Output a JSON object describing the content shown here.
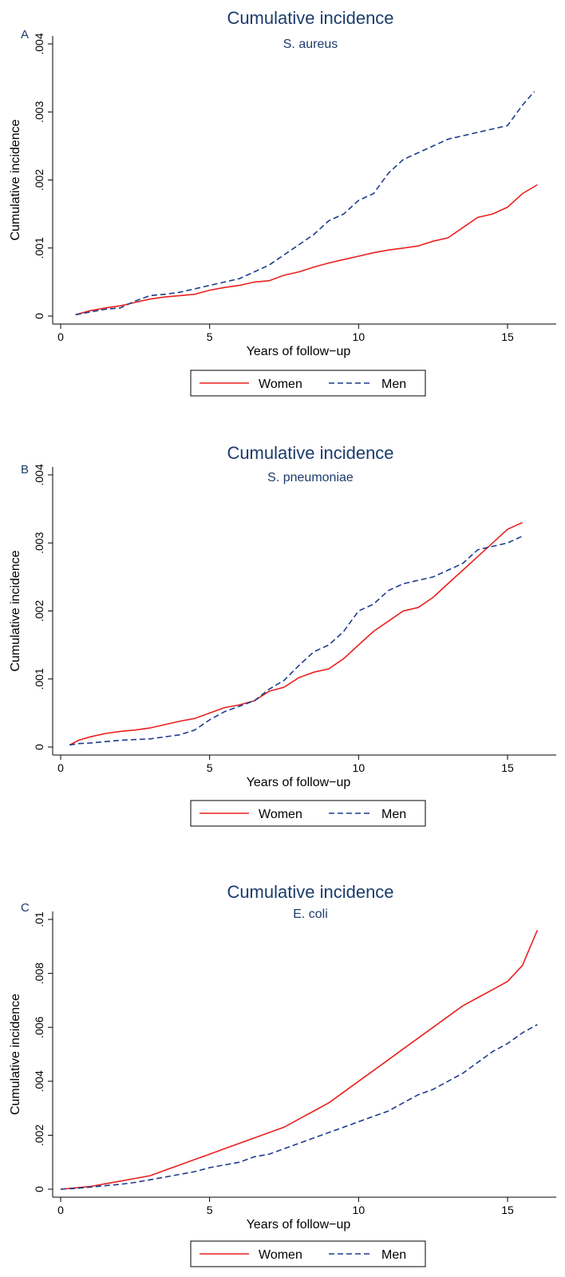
{
  "chart_data": [
    {
      "panel_label": "A",
      "type": "line",
      "title": "Cumulative incidence",
      "subtitle": "S. aureus",
      "xlabel": "Years of follow−up",
      "ylabel": "Cumulative incidence",
      "xlim": [
        0,
        17
      ],
      "ylim": [
        0,
        0.004
      ],
      "xticks": [
        0,
        5,
        10,
        15
      ],
      "xtick_labels": [
        "0",
        "5",
        "10",
        "15"
      ],
      "yticks": [
        0,
        0.001,
        0.002,
        0.003,
        0.004
      ],
      "ytick_labels": [
        "0",
        ".001",
        ".002",
        ".003",
        ".004"
      ],
      "legend": [
        "Women",
        "Men"
      ],
      "series": [
        {
          "name": "Women",
          "color": "#e8211f",
          "dash": "solid",
          "x": [
            0.5,
            1,
            1.5,
            2,
            2.5,
            3,
            3.5,
            4,
            4.5,
            5,
            5.5,
            6,
            6.5,
            7,
            7.5,
            8,
            8.5,
            9,
            9.5,
            10,
            10.5,
            11,
            11.5,
            12,
            12.5,
            13,
            13.5,
            14,
            14.5,
            15,
            15.5,
            16
          ],
          "y": [
            2e-05,
            8e-05,
            0.00012,
            0.00015,
            0.0002,
            0.00025,
            0.00028,
            0.0003,
            0.00032,
            0.00038,
            0.00042,
            0.00045,
            0.0005,
            0.00052,
            0.0006,
            0.00065,
            0.00072,
            0.00078,
            0.00083,
            0.00088,
            0.00093,
            0.00097,
            0.001,
            0.00103,
            0.0011,
            0.00115,
            0.0013,
            0.00145,
            0.0015,
            0.0016,
            0.0018,
            0.00193
          ]
        },
        {
          "name": "Men",
          "color": "#1c3c8c",
          "dash": "dashed",
          "x": [
            0.5,
            1,
            1.5,
            2,
            2.5,
            3,
            3.5,
            4,
            4.5,
            5,
            5.5,
            6,
            6.5,
            7,
            7.5,
            8,
            8.5,
            9,
            9.5,
            10,
            10.5,
            11,
            11.5,
            12,
            12.5,
            13,
            13.5,
            14,
            14.5,
            15,
            15.5,
            15.9
          ],
          "y": [
            2e-05,
            6e-05,
            0.0001,
            0.00012,
            0.00022,
            0.0003,
            0.00032,
            0.00035,
            0.0004,
            0.00045,
            0.0005,
            0.00055,
            0.00065,
            0.00075,
            0.0009,
            0.00105,
            0.0012,
            0.0014,
            0.0015,
            0.0017,
            0.0018,
            0.0021,
            0.0023,
            0.0024,
            0.0025,
            0.0026,
            0.00265,
            0.0027,
            0.00275,
            0.0028,
            0.0031,
            0.0033
          ]
        }
      ]
    },
    {
      "panel_label": "B",
      "type": "line",
      "title": "Cumulative incidence",
      "subtitle": "S. pneumoniae",
      "xlabel": "Years of follow−up",
      "ylabel": "Cumulative incidence",
      "xlim": [
        0,
        17
      ],
      "ylim": [
        0,
        0.004
      ],
      "xticks": [
        0,
        5,
        10,
        15
      ],
      "xtick_labels": [
        "0",
        "5",
        "10",
        "15"
      ],
      "yticks": [
        0,
        0.001,
        0.002,
        0.003,
        0.004
      ],
      "ytick_labels": [
        "0",
        ".001",
        ".002",
        ".003",
        ".004"
      ],
      "legend": [
        "Women",
        "Men"
      ],
      "series": [
        {
          "name": "Women",
          "color": "#e8211f",
          "dash": "solid",
          "x": [
            0.3,
            0.6,
            1,
            1.5,
            2,
            2.5,
            3,
            3.5,
            4,
            4.5,
            5,
            5.5,
            6,
            6.5,
            7,
            7.5,
            8,
            8.5,
            9,
            9.5,
            10,
            10.5,
            11,
            11.5,
            12,
            12.5,
            13,
            13.5,
            14,
            14.5,
            15,
            15.5
          ],
          "y": [
            3e-05,
            0.0001,
            0.00015,
            0.0002,
            0.00023,
            0.00025,
            0.00028,
            0.00033,
            0.00038,
            0.00042,
            0.0005,
            0.00058,
            0.00062,
            0.00068,
            0.00082,
            0.00088,
            0.00102,
            0.0011,
            0.00115,
            0.0013,
            0.0015,
            0.0017,
            0.00185,
            0.002,
            0.00205,
            0.0022,
            0.0024,
            0.0026,
            0.0028,
            0.003,
            0.0032,
            0.0033
          ]
        },
        {
          "name": "Men",
          "color": "#1c3c8c",
          "dash": "dashed",
          "x": [
            0.3,
            0.6,
            1,
            1.5,
            2,
            2.5,
            3,
            3.5,
            4,
            4.5,
            5,
            5.5,
            6,
            6.5,
            7,
            7.5,
            8,
            8.5,
            9,
            9.5,
            10,
            10.5,
            11,
            11.5,
            12,
            12.5,
            13,
            13.5,
            14,
            14.5,
            15,
            15.5
          ],
          "y": [
            3e-05,
            5e-05,
            6e-05,
            8e-05,
            0.0001,
            0.00011,
            0.00012,
            0.00015,
            0.00018,
            0.00025,
            0.0004,
            0.00052,
            0.0006,
            0.00068,
            0.00085,
            0.00098,
            0.0012,
            0.0014,
            0.0015,
            0.0017,
            0.002,
            0.0021,
            0.0023,
            0.0024,
            0.00245,
            0.0025,
            0.0026,
            0.0027,
            0.0029,
            0.00295,
            0.003,
            0.0031
          ]
        }
      ]
    },
    {
      "panel_label": "C",
      "type": "line",
      "title": "Cumulative incidence",
      "subtitle": "E. coli",
      "xlabel": "Years of follow−up",
      "ylabel": "Cumulative incidence",
      "xlim": [
        0,
        17
      ],
      "ylim": [
        0,
        0.01
      ],
      "xticks": [
        0,
        5,
        10,
        15
      ],
      "xtick_labels": [
        "0",
        "5",
        "10",
        "15"
      ],
      "yticks": [
        0,
        0.002,
        0.004,
        0.006,
        0.008,
        0.01
      ],
      "ytick_labels": [
        "0",
        ".002",
        ".004",
        ".006",
        ".008",
        ".01"
      ],
      "legend": [
        "Women",
        "Men"
      ],
      "series": [
        {
          "name": "Women",
          "color": "#e8211f",
          "dash": "solid",
          "x": [
            0,
            0.5,
            1,
            1.5,
            2,
            2.5,
            3,
            3.5,
            4,
            4.5,
            5,
            5.5,
            6,
            6.5,
            7,
            7.5,
            8,
            8.5,
            9,
            9.5,
            10,
            10.5,
            11,
            11.5,
            12,
            12.5,
            13,
            13.5,
            14,
            14.5,
            15,
            15.5,
            16
          ],
          "y": [
            0,
            5e-05,
            0.0001,
            0.0002,
            0.0003,
            0.0004,
            0.0005,
            0.0007,
            0.0009,
            0.0011,
            0.0013,
            0.0015,
            0.0017,
            0.0019,
            0.0021,
            0.0023,
            0.0026,
            0.0029,
            0.0032,
            0.0036,
            0.004,
            0.0044,
            0.0048,
            0.0052,
            0.0056,
            0.006,
            0.0064,
            0.0068,
            0.0071,
            0.0074,
            0.0077,
            0.0083,
            0.0096
          ]
        },
        {
          "name": "Men",
          "color": "#1c3c8c",
          "dash": "dashed",
          "x": [
            0,
            0.5,
            1,
            1.5,
            2,
            2.5,
            3,
            3.5,
            4,
            4.5,
            5,
            5.5,
            6,
            6.5,
            7,
            7.5,
            8,
            8.5,
            9,
            9.5,
            10,
            10.5,
            11,
            11.5,
            12,
            12.5,
            13,
            13.5,
            14,
            14.5,
            15,
            15.5,
            16
          ],
          "y": [
            0,
            3e-05,
            8e-05,
            0.00013,
            0.00018,
            0.00025,
            0.00035,
            0.00045,
            0.00055,
            0.00065,
            0.0008,
            0.0009,
            0.001,
            0.0012,
            0.0013,
            0.0015,
            0.0017,
            0.0019,
            0.0021,
            0.0023,
            0.0025,
            0.0027,
            0.0029,
            0.0032,
            0.0035,
            0.0037,
            0.004,
            0.0043,
            0.0047,
            0.0051,
            0.0054,
            0.0058,
            0.0061
          ]
        }
      ]
    }
  ]
}
